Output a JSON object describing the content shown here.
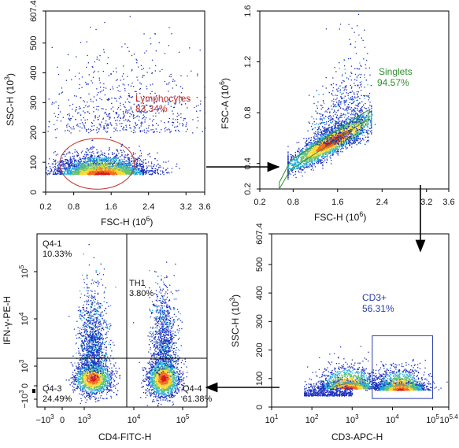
{
  "chart_data": [
    {
      "type": "scatter",
      "panel": "top-left",
      "xlabel": "FSC-H (10",
      "xlabel_exp": "6",
      "xlabel_end": ")",
      "ylabel": "SSC-H (10",
      "ylabel_exp": "3",
      "ylabel_end": ")",
      "x_ticks": [
        "0.2",
        "0.8",
        "1.6",
        "2.4",
        "3.2",
        "3.6"
      ],
      "x_tick_values": [
        0.2,
        0.8,
        1.6,
        2.4,
        3.2,
        3.6
      ],
      "y_ticks": [
        "0",
        "100",
        "200",
        "300",
        "400",
        "500",
        "607.4"
      ],
      "y_tick_values": [
        0,
        100,
        200,
        300,
        400,
        500,
        607.4
      ],
      "xlim": [
        0.2,
        3.6
      ],
      "ylim": [
        0,
        607.4
      ],
      "clusters": [
        {
          "cx": 1.4,
          "cy": 60,
          "sx": 0.5,
          "sy": 35,
          "n": 3200
        },
        {
          "cx": 1.9,
          "cy": 200,
          "sx": 0.9,
          "sy": 150,
          "n": 700
        }
      ],
      "gate": {
        "shape": "ellipse",
        "cx": 1.3,
        "cy": 95,
        "rx": 0.8,
        "ry": 85,
        "name": "Lymphocytes",
        "percent": "83.34%",
        "color": "#c0312b"
      }
    },
    {
      "type": "scatter",
      "panel": "top-right",
      "xlabel": "FSC-H (10",
      "xlabel_exp": "6",
      "xlabel_end": ")",
      "ylabel": "FSC-A (10",
      "ylabel_exp": "6",
      "ylabel_end": ")",
      "x_ticks": [
        "0.2",
        "0.8",
        "1.6",
        "2.4",
        "3.2",
        "3.6"
      ],
      "x_tick_values": [
        0.2,
        0.8,
        1.6,
        2.4,
        3.2,
        3.6
      ],
      "y_ticks": [
        "0.2",
        "0.4",
        "0.8",
        "1.2",
        "1.6"
      ],
      "y_tick_values": [
        0.2,
        0.4,
        0.8,
        1.2,
        1.6
      ],
      "xlim": [
        0.2,
        3.6
      ],
      "ylim": [
        0.2,
        1.6
      ],
      "diagonal": {
        "x0": 0.7,
        "x1": 2.2,
        "y0": 0.38,
        "y1": 0.75,
        "spread": 0.05,
        "n": 3000
      },
      "upper_cloud": {
        "x0": 1.0,
        "x1": 2.1,
        "y0": 0.55,
        "y1": 1.35,
        "n": 900
      },
      "gate": {
        "shape": "polygon",
        "points": [
          [
            0.55,
            0.25
          ],
          [
            0.75,
            0.42
          ],
          [
            2.15,
            0.82
          ],
          [
            2.15,
            0.75
          ],
          [
            0.75,
            0.35
          ],
          [
            0.55,
            0.2
          ]
        ],
        "name": "Singlets",
        "percent": "94.57%",
        "color": "#2f8f2f"
      }
    },
    {
      "type": "scatter",
      "panel": "bottom-left",
      "xlabel": "CD4-FITC-H",
      "ylabel": "IFN-γ-PE-H",
      "x_ticks": [
        "−10",
        "0",
        "10",
        "10",
        "10"
      ],
      "x_tick_exp": [
        "3",
        "",
        "3",
        "4",
        "5"
      ],
      "x_tick_values": [
        -1000,
        0,
        1000,
        10000,
        100000
      ],
      "y_ticks": [
        "−10",
        "0",
        "10",
        "10",
        "10"
      ],
      "y_tick_exp": [
        "3",
        "",
        "3",
        "4",
        "5"
      ],
      "y_tick_values": [
        -1000,
        0,
        1000,
        10000,
        100000
      ],
      "quadrants": [
        {
          "name": "Q4-1",
          "percent": "10.33%"
        },
        {
          "name": "TH1",
          "percent": "3.80%"
        },
        {
          "name": "Q4-3",
          "percent": "24.49%"
        },
        {
          "name": "Q4-4",
          "percent": "61.38%"
        }
      ],
      "divider": {
        "x": 4200,
        "y": 1700
      }
    },
    {
      "type": "scatter",
      "panel": "bottom-right",
      "xlabel": "CD3-APC-H",
      "ylabel": "SSC-H (10",
      "ylabel_exp": "3",
      "ylabel_end": ")",
      "x_ticks": [
        "10",
        "10",
        "10",
        "10",
        "10",
        "10"
      ],
      "x_tick_exp": [
        "1",
        "2",
        "3",
        "4",
        "5",
        "5.4"
      ],
      "x_tick_values": [
        1,
        2,
        3,
        4,
        5,
        5.4
      ],
      "y_ticks": [
        "0",
        "100",
        "200",
        "300",
        "400",
        "500",
        "607.4"
      ],
      "y_tick_values": [
        0,
        100,
        200,
        300,
        400,
        500,
        607.4
      ],
      "xlim": [
        1,
        5.4
      ],
      "ylim": [
        0,
        607.4
      ],
      "gate": {
        "shape": "rect",
        "x0": 3.5,
        "x1": 5.0,
        "y0": 30,
        "y1": 250,
        "name": "CD3+",
        "percent": "56.31%",
        "color": "#2b3fa8"
      }
    }
  ]
}
